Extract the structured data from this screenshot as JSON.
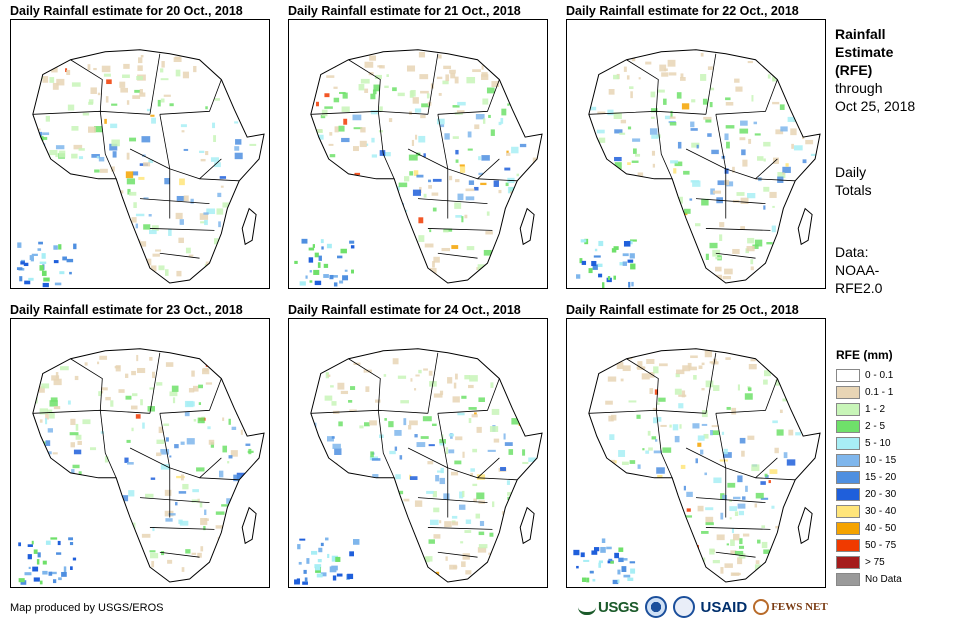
{
  "panels": [
    {
      "title": "Daily Rainfall estimate for 20 Oct., 2018",
      "col": 0,
      "row": 0,
      "seed": 3
    },
    {
      "title": "Daily Rainfall estimate for 21 Oct., 2018",
      "col": 1,
      "row": 0,
      "seed": 7
    },
    {
      "title": "Daily Rainfall estimate for 22 Oct., 2018",
      "col": 2,
      "row": 0,
      "seed": 11
    },
    {
      "title": "Daily Rainfall estimate for 23 Oct., 2018",
      "col": 0,
      "row": 1,
      "seed": 17
    },
    {
      "title": "Daily Rainfall estimate for 24 Oct., 2018",
      "col": 1,
      "row": 1,
      "seed": 23
    },
    {
      "title": "Daily Rainfall estimate for 25 Oct., 2018",
      "col": 2,
      "row": 1,
      "seed": 29
    }
  ],
  "sidebar": {
    "heading_line1": "Rainfall",
    "heading_line2": "Estimate",
    "heading_line3": "(RFE)",
    "through_line1": "through",
    "through_line2": "Oct 25, 2018",
    "daily_line1": "Daily",
    "daily_line2": "Totals",
    "data_line1": "Data:",
    "data_line2": "NOAA-",
    "data_line3": "RFE2.0"
  },
  "legend": {
    "title": "RFE (mm)",
    "items": [
      {
        "label": "0 - 0.1",
        "color": "#ffffff"
      },
      {
        "label": "0.1 - 1",
        "color": "#e8d5b5"
      },
      {
        "label": "1 - 2",
        "color": "#c8f5b8"
      },
      {
        "label": "2 - 5",
        "color": "#6fe06a"
      },
      {
        "label": "5 - 10",
        "color": "#a8eef5"
      },
      {
        "label": "10 - 15",
        "color": "#7fb6ec"
      },
      {
        "label": "15 - 20",
        "color": "#4f8fe0"
      },
      {
        "label": "20 - 30",
        "color": "#1f5fdb"
      },
      {
        "label": "30 - 40",
        "color": "#ffe57a"
      },
      {
        "label": "40 - 50",
        "color": "#f5a300"
      },
      {
        "label": "50 - 75",
        "color": "#f03a00"
      },
      {
        "label": "> 75",
        "color": "#a51c1c"
      },
      {
        "label": "No Data",
        "color": "#9a9a9a"
      }
    ]
  },
  "footer": {
    "credit": "Map produced by USGS/EROS",
    "logo_usgs": "USGS",
    "logo_usaid": "USAID",
    "logo_fews": "FEWS NET"
  }
}
